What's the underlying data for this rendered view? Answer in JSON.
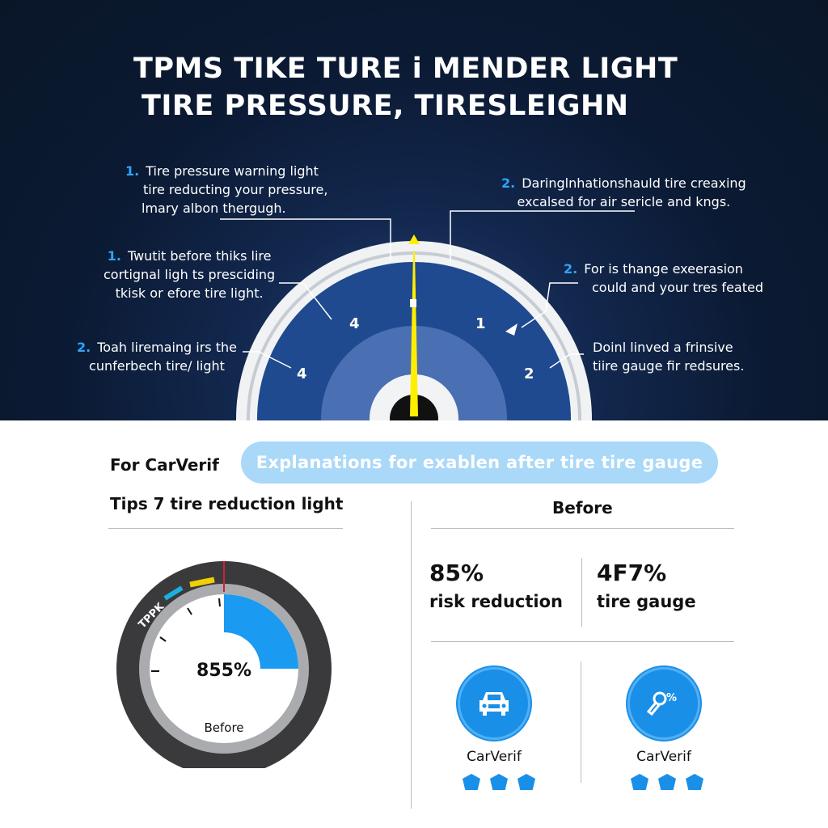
{
  "header": {
    "title_line1": "TPMS TIKE TURE i MENDER LIGHT",
    "title_line2": "TIRE PRESSURE, TIRESLEIGHN"
  },
  "notes": [
    {
      "num": "1.",
      "lines": [
        "Tire pressure warning light",
        "tire reducting your pressure,",
        "lmary albon thergugh."
      ]
    },
    {
      "num": "1.",
      "lines": [
        "Twutit before thiks lire",
        "cortignal ligh ts presciding",
        "tkisk or efore tire light."
      ]
    },
    {
      "num": "2.",
      "lines": [
        "Toah liremaing irs the",
        "cunferbech tire/ light"
      ]
    },
    {
      "num": "2.",
      "lines": [
        "Daringlnhationshauld tire creaxing",
        "excalsed for air sericle and kngs."
      ]
    },
    {
      "num": "2.",
      "lines": [
        "For is thange exeerasion",
        "could and your tres feated"
      ]
    },
    {
      "num": "",
      "lines": [
        "Doinl linved a frinsive",
        "tiire gauge fir redsures."
      ]
    }
  ],
  "gauge": {
    "labels": [
      "4",
      "4",
      "1",
      "2"
    ],
    "colors": {
      "face": "#1f4a8f",
      "rim": "#e8eaee",
      "needle": "#ffee00"
    }
  },
  "bottom": {
    "brand_label": "For CarVerif",
    "pill_text": "Explanations for exablen after tire tire gauge",
    "tips_heading": "Tips 7 tire reduction light",
    "before_heading": "Before",
    "dial": {
      "arc_label": "TPPK",
      "value_text": "855%",
      "caption": "Before",
      "fill_fraction": 0.25,
      "fill_color": "#1a9af0"
    },
    "stats": [
      {
        "value": "85%",
        "label": "risk reduction"
      },
      {
        "value": "4F7%",
        "label": "tire gauge"
      }
    ],
    "badges": [
      {
        "icon": "car-icon",
        "label": "CarVerif",
        "stars": 3
      },
      {
        "icon": "gauge-key-icon",
        "label": "CarVerif",
        "stars": 3
      }
    ],
    "accent": "#1a8fe8"
  }
}
